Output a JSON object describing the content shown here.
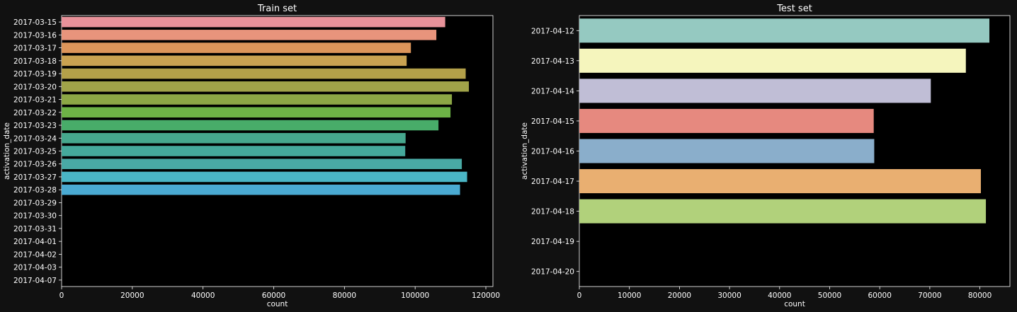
{
  "chart_data": [
    {
      "type": "bar",
      "orientation": "horizontal",
      "title": "Train set",
      "xlabel": "count",
      "ylabel": "activation_date",
      "xlim": [
        0,
        122000
      ],
      "xticks": [
        0,
        20000,
        40000,
        60000,
        80000,
        100000,
        120000
      ],
      "grid": false,
      "categories": [
        "2017-03-15",
        "2017-03-16",
        "2017-03-17",
        "2017-03-18",
        "2017-03-19",
        "2017-03-20",
        "2017-03-21",
        "2017-03-22",
        "2017-03-23",
        "2017-03-24",
        "2017-03-25",
        "2017-03-26",
        "2017-03-27",
        "2017-03-28",
        "2017-03-29",
        "2017-03-30",
        "2017-03-31",
        "2017-04-01",
        "2017-04-02",
        "2017-04-03",
        "2017-04-07"
      ],
      "values": [
        108500,
        106000,
        98800,
        97600,
        114300,
        115200,
        110400,
        110000,
        106600,
        97300,
        97200,
        113200,
        114700,
        112700,
        0,
        0,
        0,
        0,
        0,
        0,
        0
      ],
      "colors": [
        "#e8929a",
        "#e8947c",
        "#dc955a",
        "#c9a251",
        "#b3a049",
        "#a0a349",
        "#8ca745",
        "#6db346",
        "#48ac69",
        "#46a78d",
        "#45a99b",
        "#49aaa5",
        "#4ab5c5",
        "#4aaad2",
        "#4aaad2",
        "#4aaad2",
        "#4aaad2",
        "#4aaad2",
        "#4aaad2",
        "#4aaad2",
        "#4aaad2"
      ]
    },
    {
      "type": "bar",
      "orientation": "horizontal",
      "title": "Test set",
      "xlabel": "count",
      "ylabel": "activation_date",
      "xlim": [
        0,
        86000
      ],
      "xticks": [
        0,
        10000,
        20000,
        30000,
        40000,
        50000,
        60000,
        70000,
        80000
      ],
      "grid": false,
      "categories": [
        "2017-04-12",
        "2017-04-13",
        "2017-04-14",
        "2017-04-15",
        "2017-04-16",
        "2017-04-17",
        "2017-04-18",
        "2017-04-19",
        "2017-04-20"
      ],
      "values": [
        81900,
        77200,
        70200,
        58800,
        58900,
        80200,
        81200,
        0,
        0
      ],
      "colors": [
        "#95c9c1",
        "#f5f5bd",
        "#c0bed6",
        "#e6897f",
        "#8aaecb",
        "#e9af71",
        "#b1d17b",
        "#b1d17b",
        "#b1d17b"
      ]
    }
  ]
}
